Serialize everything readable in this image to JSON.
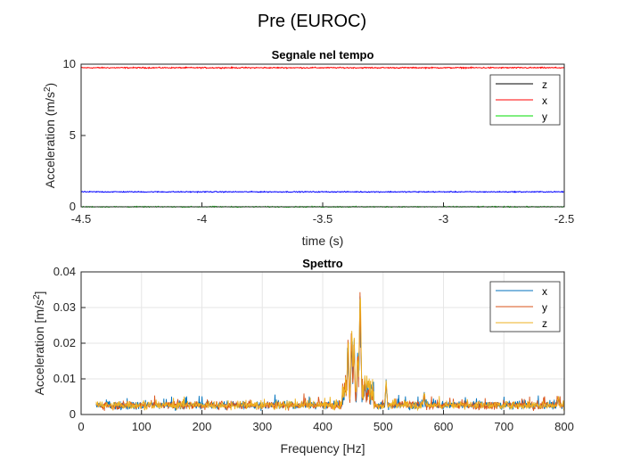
{
  "figure": {
    "title": "Pre (EUROC)"
  },
  "chart_data": [
    {
      "type": "line",
      "title": "Segnale nel tempo",
      "xlabel": "time (s)",
      "ylabel_main": "Acceleration (m/s",
      "ylabel_sup": "2",
      "ylabel_end": ")",
      "xlim": [
        -4.5,
        -2.5
      ],
      "ylim": [
        0,
        10
      ],
      "xticks": [
        -4.5,
        -4,
        -3.5,
        -3,
        -2.5
      ],
      "xtick_labels": [
        "-4.5",
        "-4",
        "-3.5",
        "-3",
        "-2.5"
      ],
      "yticks": [
        0,
        5,
        10
      ],
      "ytick_labels": [
        "0",
        "5",
        "10"
      ],
      "grid": false,
      "legend_position": "top-right",
      "legend": [
        {
          "label": "z",
          "color": "#000000"
        },
        {
          "label": "x",
          "color": "#ff0000"
        },
        {
          "label": "y",
          "color": "#00dd00"
        }
      ],
      "series": [
        {
          "color": "#ff0000",
          "mean": 9.75,
          "noise": 0.06
        },
        {
          "color": "#0000ff",
          "mean": 1.05,
          "noise": 0.05
        },
        {
          "color": "#00dd00",
          "mean": 0.0,
          "noise": 0.05
        }
      ]
    },
    {
      "type": "line",
      "title": "Spettro",
      "xlabel": "Frequency [Hz]",
      "ylabel_main": "Acceleration [m/s",
      "ylabel_sup": "2",
      "ylabel_end": "]",
      "xlim": [
        0,
        800
      ],
      "ylim": [
        0,
        0.04
      ],
      "xticks": [
        0,
        100,
        200,
        300,
        400,
        500,
        600,
        700,
        800
      ],
      "xtick_labels": [
        "0",
        "100",
        "200",
        "300",
        "400",
        "500",
        "600",
        "700",
        "800"
      ],
      "yticks": [
        0,
        0.01,
        0.02,
        0.03,
        0.04
      ],
      "ytick_labels": [
        "0",
        "0.01",
        "0.02",
        "0.03",
        "0.04"
      ],
      "grid": true,
      "legend_position": "top-right",
      "legend": [
        {
          "label": "x",
          "color": "#0072bd"
        },
        {
          "label": "y",
          "color": "#d95319"
        },
        {
          "label": "z",
          "color": "#edb120"
        }
      ],
      "x_start": 25,
      "baseline_level": 0.0022,
      "peaks": [
        {
          "x": 442,
          "y": 0.022
        },
        {
          "x": 448,
          "y": 0.025
        },
        {
          "x": 452,
          "y": 0.021
        },
        {
          "x": 458,
          "y": 0.018
        },
        {
          "x": 462,
          "y": 0.0345
        },
        {
          "x": 470,
          "y": 0.011
        },
        {
          "x": 476,
          "y": 0.007
        },
        {
          "x": 505,
          "y": 0.0095
        },
        {
          "x": 568,
          "y": 0.007
        },
        {
          "x": 790,
          "y": 0.0055
        }
      ]
    }
  ]
}
